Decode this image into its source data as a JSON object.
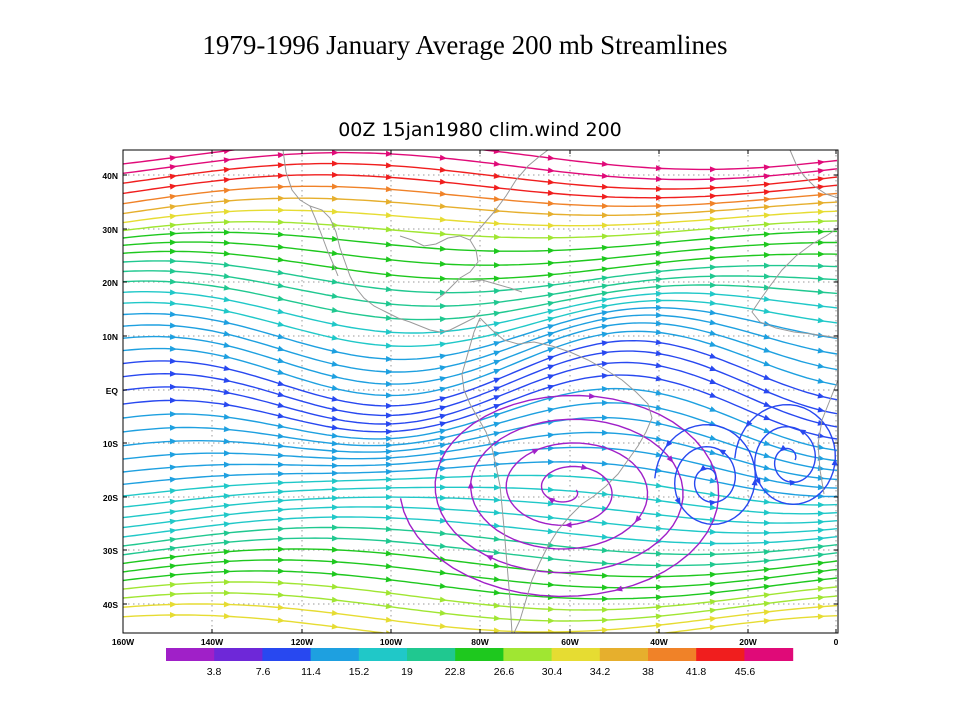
{
  "slide_title": "1979-1996 January Average 200 mb Streamlines",
  "plot_title": "00Z 15jan1980 clim.wind 200",
  "lat_labels": [
    "40N",
    "30N",
    "20N",
    "10N",
    "EQ",
    "10S",
    "20S",
    "30S",
    "40S"
  ],
  "lon_labels": [
    "160W",
    "140W",
    "120W",
    "100W",
    "80W",
    "60W",
    "40W",
    "20W",
    "0"
  ],
  "colorbar": {
    "labels": [
      "3.8",
      "7.6",
      "11.4",
      "15.2",
      "19",
      "22.8",
      "26.6",
      "30.4",
      "34.2",
      "38",
      "41.8",
      "45.6"
    ],
    "colors": [
      "#a020c8",
      "#6e28d8",
      "#2848f0",
      "#1ea0e0",
      "#20c8c8",
      "#20c890",
      "#1ec81e",
      "#a0e632",
      "#e6dc32",
      "#e6af2d",
      "#f08228",
      "#f01e1e",
      "#e00a78"
    ]
  },
  "colors": {
    "grid": "#999999",
    "coast": "#9a9a9a"
  }
}
